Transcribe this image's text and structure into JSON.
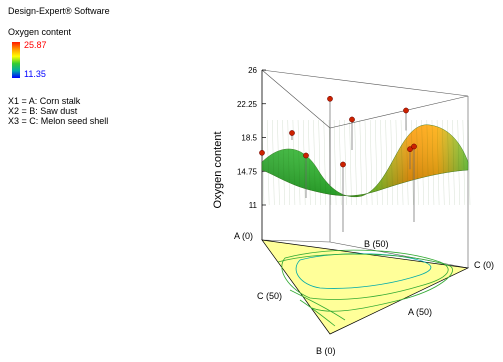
{
  "software": "Design-Expert® Software",
  "legend": {
    "title": "Oxygen content",
    "high": "25.87",
    "low": "11.35",
    "colors": [
      "#ff1a00",
      "#ff9900",
      "#ffff00",
      "#33cc33",
      "#00aaaa",
      "#0000ff"
    ]
  },
  "factors": [
    "X1 = A: Corn stalk",
    "X2 = B: Saw dust",
    "X3 = C: Melon seed shell"
  ],
  "chart_data": {
    "type": "surface",
    "zlabel": "Oxygen content",
    "z_ticks": [
      "26",
      "22.25",
      "18.5",
      "14.75",
      "11"
    ],
    "zlim": [
      11,
      26
    ],
    "ticks_labels": [
      "26",
      "22.25",
      "18.5",
      "14.75",
      "11"
    ],
    "vertex_labels": {
      "a0": "A (0)",
      "b50": "B (50)",
      "c0": "C (0)",
      "c50": "C (50)",
      "a50": "A (50)",
      "b0": "B (0)"
    },
    "design_points": [
      {
        "z": 19.0
      },
      {
        "z": 16.8
      },
      {
        "z": 16.5
      },
      {
        "z": 20.5
      },
      {
        "z": 17.2
      },
      {
        "z": 21.5
      },
      {
        "z": 22.8
      },
      {
        "z": 15.5
      },
      {
        "z": 17.5
      }
    ]
  }
}
